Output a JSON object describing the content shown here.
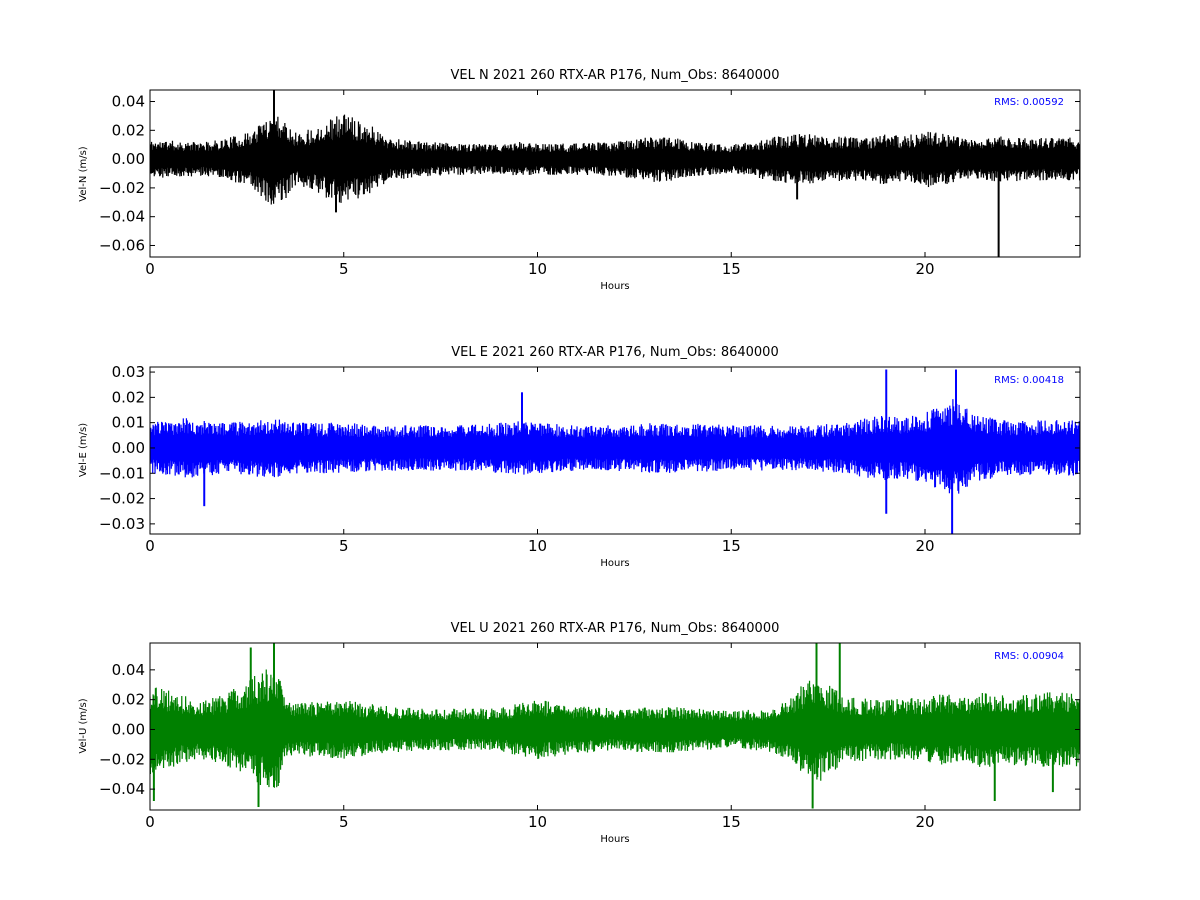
{
  "chart_data": [
    {
      "type": "line",
      "title": "VEL N 2021 260 RTX-AR  P176, Num_Obs: 8640000",
      "xlabel": "Hours",
      "ylabel": "Vel-N (m/s)",
      "xlim": [
        0,
        24
      ],
      "ylim": [
        -0.068,
        0.048
      ],
      "x_ticks": [
        0,
        5,
        10,
        15,
        20
      ],
      "x_tick_labels": [
        "0",
        "5",
        "10",
        "15",
        "20"
      ],
      "y_ticks": [
        0.04,
        0.02,
        0.0,
        -0.02,
        -0.04,
        -0.06
      ],
      "y_tick_labels": [
        "0.04",
        "0.02",
        "0.00",
        "−0.02",
        "−0.04",
        "−0.06"
      ],
      "color": "#000000",
      "annotation": "RMS:  0.00592",
      "annotation_color": "#0000ff",
      "envelope": {
        "x": [
          0,
          0.5,
          1,
          1.5,
          2,
          2.5,
          2.8,
          3.0,
          3.2,
          3.5,
          3.8,
          4.2,
          4.6,
          5.0,
          5.4,
          5.8,
          6.2,
          7,
          8,
          9,
          9.5,
          10,
          11,
          12,
          12.5,
          13,
          13.5,
          14,
          15,
          15.5,
          16,
          16.5,
          17,
          17.5,
          18,
          18.5,
          19,
          19.5,
          20,
          20.5,
          21,
          21.5,
          22,
          22.5,
          23,
          23.5,
          24
        ],
        "amp": [
          0.013,
          0.013,
          0.012,
          0.012,
          0.015,
          0.018,
          0.024,
          0.03,
          0.033,
          0.028,
          0.018,
          0.022,
          0.028,
          0.032,
          0.028,
          0.022,
          0.015,
          0.012,
          0.011,
          0.01,
          0.012,
          0.011,
          0.011,
          0.012,
          0.014,
          0.016,
          0.015,
          0.012,
          0.01,
          0.012,
          0.015,
          0.017,
          0.018,
          0.015,
          0.016,
          0.015,
          0.018,
          0.016,
          0.02,
          0.018,
          0.014,
          0.015,
          0.016,
          0.015,
          0.015,
          0.015,
          0.015
        ]
      },
      "spikes": [
        {
          "x": 3.2,
          "y": 0.048
        },
        {
          "x": 21.9,
          "y": -0.068
        },
        {
          "x": 16.7,
          "y": -0.028
        },
        {
          "x": 4.8,
          "y": -0.037
        }
      ]
    },
    {
      "type": "line",
      "title": "VEL E 2021 260 RTX-AR  P176, Num_Obs: 8640000",
      "xlabel": "Hours",
      "ylabel": "Vel-E (m/s)",
      "xlim": [
        0,
        24
      ],
      "ylim": [
        -0.034,
        0.032
      ],
      "x_ticks": [
        0,
        5,
        10,
        15,
        20
      ],
      "x_tick_labels": [
        "0",
        "5",
        "10",
        "15",
        "20"
      ],
      "y_ticks": [
        0.03,
        0.02,
        0.01,
        0.0,
        -0.01,
        -0.02,
        -0.03
      ],
      "y_tick_labels": [
        "0.03",
        "0.02",
        "0.01",
        "0.00",
        "−0.01",
        "−0.02",
        "−0.03"
      ],
      "color": "#0000ff",
      "annotation": "RMS:  0.00418",
      "annotation_color": "#0000ff",
      "envelope": {
        "x": [
          0,
          1,
          1.5,
          2,
          3,
          3.5,
          4,
          5,
          6,
          7,
          8,
          9,
          9.5,
          10,
          11,
          12,
          13,
          14,
          15,
          16,
          17,
          18,
          18.5,
          19,
          19.5,
          20,
          20.5,
          20.8,
          21.2,
          22,
          23,
          24
        ],
        "amp": [
          0.01,
          0.012,
          0.011,
          0.01,
          0.012,
          0.011,
          0.01,
          0.01,
          0.009,
          0.009,
          0.009,
          0.01,
          0.011,
          0.01,
          0.009,
          0.009,
          0.01,
          0.01,
          0.009,
          0.009,
          0.009,
          0.01,
          0.012,
          0.013,
          0.012,
          0.014,
          0.018,
          0.02,
          0.014,
          0.011,
          0.011,
          0.011
        ]
      },
      "spikes": [
        {
          "x": 19.0,
          "y": 0.031
        },
        {
          "x": 20.7,
          "y": -0.034
        },
        {
          "x": 20.8,
          "y": 0.031
        },
        {
          "x": 19.0,
          "y": -0.026
        },
        {
          "x": 9.6,
          "y": 0.022
        },
        {
          "x": 1.4,
          "y": -0.023
        }
      ]
    },
    {
      "type": "line",
      "title": "VEL U 2021 260 RTX-AR  P176, Num_Obs: 8640000",
      "xlabel": "Hours",
      "ylabel": "Vel-U (m/s)",
      "xlim": [
        0,
        24
      ],
      "ylim": [
        -0.054,
        0.058
      ],
      "x_ticks": [
        0,
        5,
        10,
        15,
        20
      ],
      "x_tick_labels": [
        "0",
        "5",
        "10",
        "15",
        "20"
      ],
      "y_ticks": [
        0.04,
        0.02,
        0.0,
        -0.02,
        -0.04
      ],
      "y_tick_labels": [
        "0.04",
        "0.02",
        "0.00",
        "−0.02",
        "−0.04"
      ],
      "color": "#008000",
      "annotation": "RMS:  0.00904",
      "annotation_color": "#0000ff",
      "envelope": {
        "x": [
          0,
          0.5,
          1,
          1.5,
          2,
          2.5,
          2.8,
          3.0,
          3.3,
          3.5,
          4,
          5,
          6,
          7,
          8,
          9,
          9.5,
          10,
          10.5,
          11,
          12,
          13,
          14,
          15,
          16,
          16.5,
          17,
          17.2,
          17.5,
          18,
          19,
          20,
          20.5,
          21,
          21.5,
          22,
          23,
          24
        ],
        "amp": [
          0.03,
          0.026,
          0.022,
          0.02,
          0.025,
          0.032,
          0.038,
          0.042,
          0.04,
          0.018,
          0.018,
          0.02,
          0.016,
          0.014,
          0.014,
          0.014,
          0.018,
          0.02,
          0.018,
          0.016,
          0.014,
          0.016,
          0.015,
          0.012,
          0.015,
          0.02,
          0.035,
          0.038,
          0.03,
          0.022,
          0.02,
          0.022,
          0.024,
          0.022,
          0.026,
          0.024,
          0.025,
          0.025
        ]
      },
      "spikes": [
        {
          "x": 2.6,
          "y": 0.055
        },
        {
          "x": 3.2,
          "y": 0.058
        },
        {
          "x": 17.2,
          "y": 0.058
        },
        {
          "x": 17.8,
          "y": 0.058
        },
        {
          "x": 17.1,
          "y": -0.053
        },
        {
          "x": 2.8,
          "y": -0.052
        },
        {
          "x": 0.1,
          "y": -0.048
        },
        {
          "x": 21.8,
          "y": -0.048
        },
        {
          "x": 23.3,
          "y": -0.042
        }
      ]
    }
  ]
}
